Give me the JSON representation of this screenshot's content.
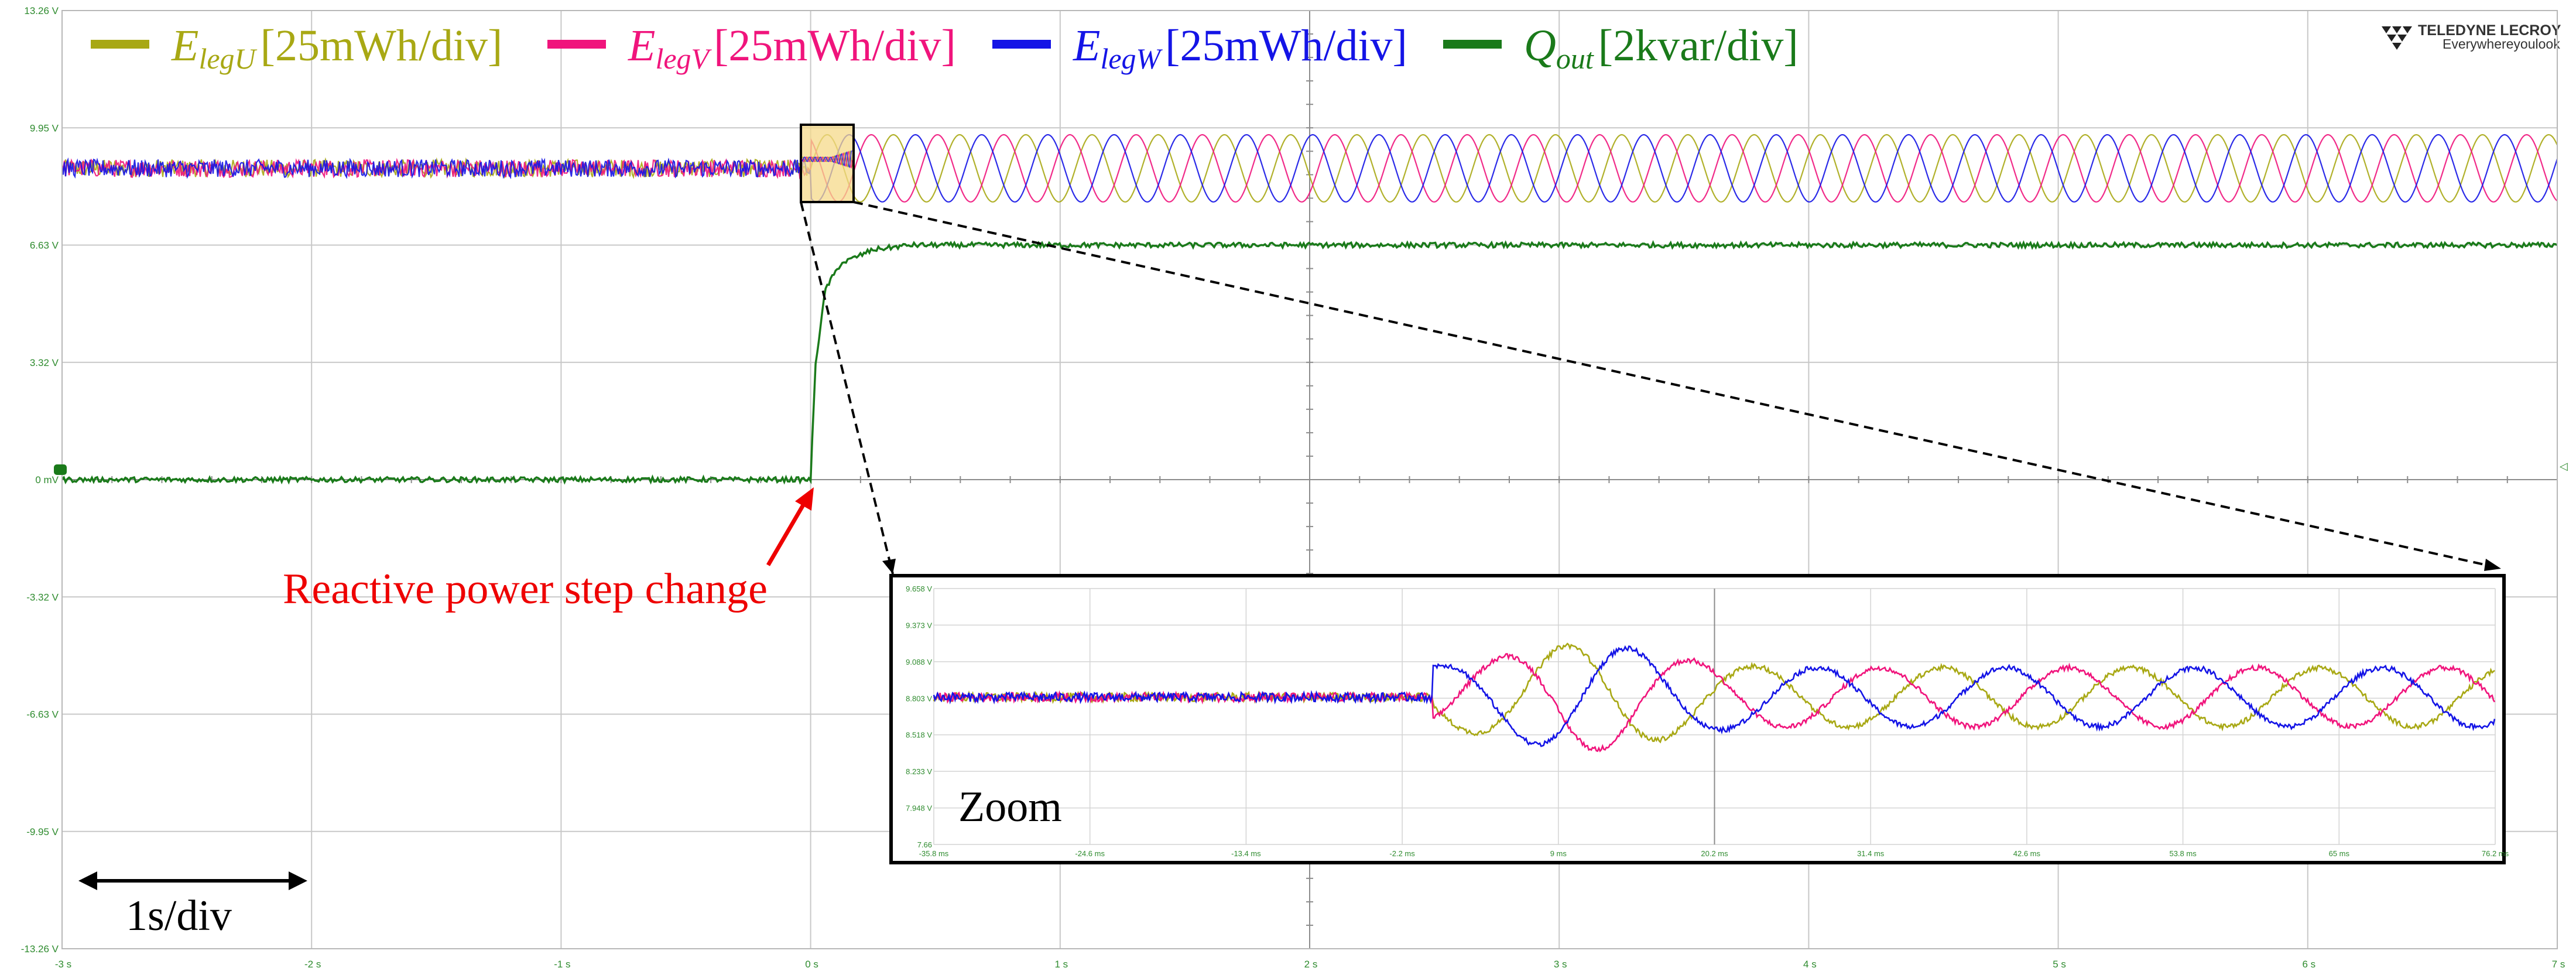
{
  "brand": {
    "name": "TELEDYNE LECROY",
    "tagline": "Everywhereyoulook"
  },
  "chart_data": {
    "type": "line",
    "x_unit": "s",
    "xlim": [
      -3,
      7
    ],
    "x_tick_labels": [
      "-3 s",
      "-2 s",
      "-1 s",
      "0 s",
      "1 s",
      "2 s",
      "3 s",
      "4 s",
      "5 s",
      "6 s",
      "7 s"
    ],
    "ylim": [
      -13.26,
      13.26
    ],
    "y_tick_labels": [
      "13.26 V",
      "9.95 V",
      "6.63 V",
      "3.32 V",
      "0 mV",
      "-3.32 V",
      "-6.63 V",
      "-9.95 V",
      "-13.26 V"
    ],
    "grid": true,
    "legend_position": "top",
    "series": [
      {
        "sym": "E",
        "sub": "legU",
        "unit": "[25mWh/div]",
        "color": "#a8a814",
        "before": {
          "level": 8.8,
          "ripple": 0.25
        },
        "after": {
          "level": 8.8,
          "ripple": 0.95
        }
      },
      {
        "sym": "E",
        "sub": "legV",
        "unit": "[25mWh/div]",
        "color": "#f0147c",
        "before": {
          "level": 8.8,
          "ripple": 0.25
        },
        "after": {
          "level": 8.8,
          "ripple": 0.95
        }
      },
      {
        "sym": "E",
        "sub": "legW",
        "unit": "[25mWh/div]",
        "color": "#1414e6",
        "before": {
          "level": 8.8,
          "ripple": 0.25
        },
        "after": {
          "level": 8.8,
          "ripple": 0.95
        }
      },
      {
        "sym": "Q",
        "sub": "out",
        "unit": "[2kvar/div]",
        "color": "#1a7a1a",
        "x": [
          -3,
          0,
          0.02,
          0.06,
          0.12,
          0.25,
          0.4,
          7
        ],
        "y": [
          0,
          0,
          3.3,
          5.4,
          6.1,
          6.5,
          6.63,
          6.63
        ]
      }
    ],
    "step_time": 0,
    "annotation": "Reactive power step change",
    "scale_label": "1s/div",
    "zoom": {
      "label": "Zoom",
      "xlim": [
        -35.8,
        76.2
      ],
      "x_tick_labels": [
        "-35.8 ms",
        "-24.6 ms",
        "-13.4 ms",
        "-2.2 ms",
        "9 ms",
        "20.2 ms",
        "31.4 ms",
        "42.6 ms",
        "53.8 ms",
        "65 ms",
        "76.2 ms"
      ],
      "ylim": [
        7.66,
        9.658
      ],
      "y_tick_labels": [
        "9.658 V",
        "9.373 V",
        "9.088 V",
        "8.803 V",
        "8.518 V",
        "8.233 V",
        "7.948 V",
        "7.66"
      ],
      "baseline": 8.81,
      "step_ms": 0
    }
  }
}
